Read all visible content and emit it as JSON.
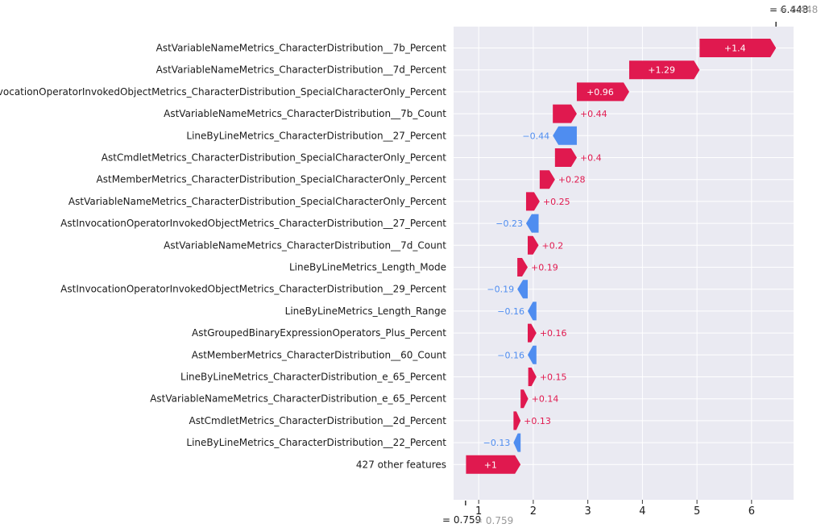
{
  "chart_data": {
    "type": "waterfall",
    "base_value": 0.759,
    "base_label": "= 0.759",
    "base_label_ghost": "= 0.759",
    "final_value": 6.448,
    "final_label": "= 6.448",
    "final_label_ghost": "= 6.448",
    "xlim": [
      0.54,
      6.77
    ],
    "x_ticks": [
      1,
      2,
      3,
      4,
      5,
      6
    ],
    "x_tick_labels": [
      "1",
      "2",
      "3",
      "4",
      "5",
      "6"
    ],
    "grid": true,
    "colors": {
      "positive": "#e0194f",
      "negative": "#4f8df0",
      "background": "#eaeaf2",
      "grid": "#ffffff"
    },
    "features": [
      {
        "name": "AstVariableNameMetrics_CharacterDistribution__7b_Percent",
        "value": 1.4,
        "label": "+1.4"
      },
      {
        "name": "AstVariableNameMetrics_CharacterDistribution__7d_Percent",
        "value": 1.29,
        "label": "+1.29"
      },
      {
        "name": "AstInvocationOperatorInvokedObjectMetrics_CharacterDistribution_SpecialCharacterOnly_Percent",
        "value": 0.96,
        "label": "+0.96"
      },
      {
        "name": "AstVariableNameMetrics_CharacterDistribution__7b_Count",
        "value": 0.44,
        "label": "+0.44"
      },
      {
        "name": "LineByLineMetrics_CharacterDistribution__27_Percent",
        "value": -0.44,
        "label": "−0.44"
      },
      {
        "name": "AstCmdletMetrics_CharacterDistribution_SpecialCharacterOnly_Percent",
        "value": 0.4,
        "label": "+0.4"
      },
      {
        "name": "AstMemberMetrics_CharacterDistribution_SpecialCharacterOnly_Percent",
        "value": 0.28,
        "label": "+0.28"
      },
      {
        "name": "AstVariableNameMetrics_CharacterDistribution_SpecialCharacterOnly_Percent",
        "value": 0.25,
        "label": "+0.25"
      },
      {
        "name": "AstInvocationOperatorInvokedObjectMetrics_CharacterDistribution__27_Percent",
        "value": -0.23,
        "label": "−0.23"
      },
      {
        "name": "AstVariableNameMetrics_CharacterDistribution__7d_Count",
        "value": 0.2,
        "label": "+0.2"
      },
      {
        "name": "LineByLineMetrics_Length_Mode",
        "value": 0.19,
        "label": "+0.19"
      },
      {
        "name": "AstInvocationOperatorInvokedObjectMetrics_CharacterDistribution__29_Percent",
        "value": -0.19,
        "label": "−0.19"
      },
      {
        "name": "LineByLineMetrics_Length_Range",
        "value": -0.16,
        "label": "−0.16"
      },
      {
        "name": "AstGroupedBinaryExpressionOperators_Plus_Percent",
        "value": 0.16,
        "label": "+0.16"
      },
      {
        "name": "AstMemberMetrics_CharacterDistribution__60_Count",
        "value": -0.16,
        "label": "−0.16"
      },
      {
        "name": "LineByLineMetrics_CharacterDistribution_e_65_Percent",
        "value": 0.15,
        "label": "+0.15"
      },
      {
        "name": "AstVariableNameMetrics_CharacterDistribution_e_65_Percent",
        "value": 0.14,
        "label": "+0.14"
      },
      {
        "name": "AstCmdletMetrics_CharacterDistribution__2d_Percent",
        "value": 0.13,
        "label": "+0.13"
      },
      {
        "name": "LineByLineMetrics_CharacterDistribution__22_Percent",
        "value": -0.13,
        "label": "−0.13"
      },
      {
        "name": "427 other features",
        "value": 1.0,
        "label": "+1"
      }
    ]
  }
}
